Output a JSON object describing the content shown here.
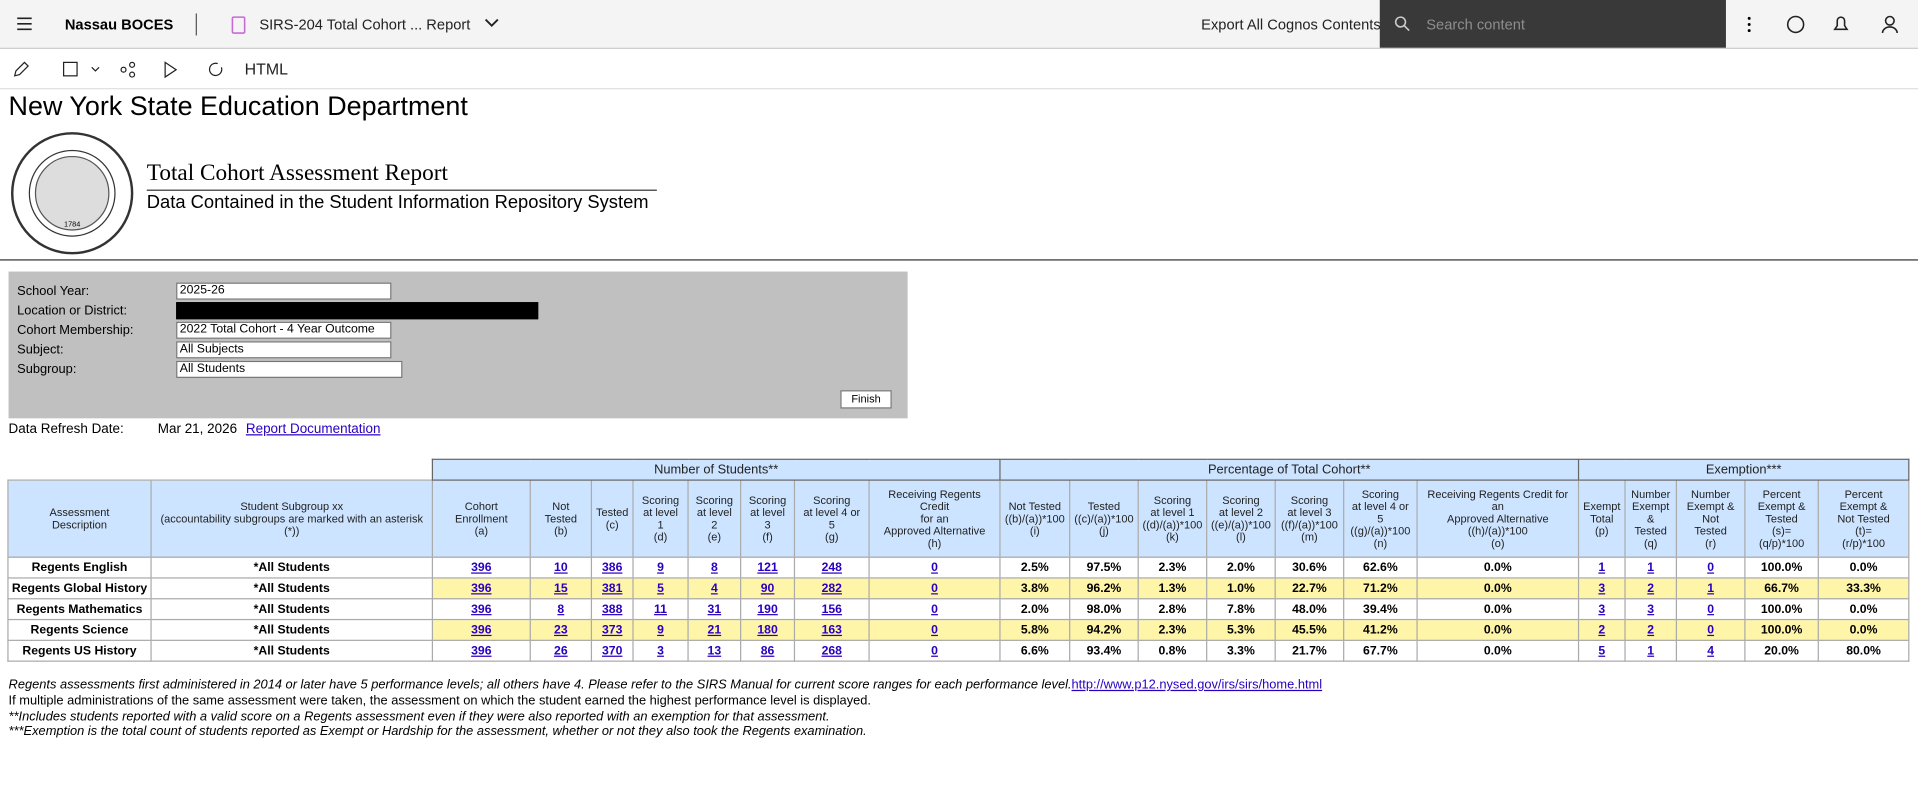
{
  "topbar": {
    "org": "Nassau BOCES",
    "report_tab": "SIRS-204 Total Cohort ... Report",
    "export": "Export All Cognos Contents",
    "search_placeholder": "Search content"
  },
  "toolbar": {
    "format": "HTML"
  },
  "report": {
    "heading": "New York State Education Department",
    "seal_year": "1784",
    "title": "Total Cohort Assessment Report",
    "subtitle": "Data Contained in the Student Information Repository System",
    "prompts": [
      {
        "label": "School Year:",
        "value": "2025-26"
      },
      {
        "label": "Location or District:"
      },
      {
        "label": "Cohort Membership:",
        "value": "2022 Total Cohort - 4 Year Outcome"
      },
      {
        "label": "Subject:",
        "value": "All Subjects"
      },
      {
        "label": "Subgroup:",
        "value": "All Students"
      }
    ],
    "finish": "Finish",
    "refresh_label": "Data Refresh Date:",
    "refresh_date": "Mar 21, 2026",
    "doc_link": "Report Documentation"
  },
  "table": {
    "groups": [
      "Number of Students**",
      "Percentage of Total Cohort**",
      "Exemption***"
    ],
    "headers": [
      "Assessment\nDescription",
      "Student Subgroup xx\n(accountability subgroups are marked with an asterisk\n(*))",
      "Cohort\nEnrollment\n(a)",
      "Not\nTested\n(b)",
      "Tested\n(c)",
      "Scoring\nat level\n1\n(d)",
      "Scoring\nat level\n2\n(e)",
      "Scoring\nat level\n3\n(f)",
      "Scoring\nat level 4 or\n5\n(g)",
      "Receiving Regents\nCredit\nfor an\nApproved Alternative\n(h)",
      "Not Tested\n((b)/(a))*100\n(i)",
      "Tested\n((c)/(a))*100\n(j)",
      "Scoring\nat level 1\n((d)/(a))*100\n(k)",
      "Scoring\nat level 2\n((e)/(a))*100\n(l)",
      "Scoring\nat level 3\n((f)/(a))*100\n(m)",
      "Scoring\nat level 4 or\n5\n((g)/(a))*100\n(n)",
      "Receiving Regents Credit for\nan\nApproved Alternative\n((h)/(a))*100\n(o)",
      "Exempt\nTotal\n(p)",
      "Number\nExempt\n&\nTested\n(q)",
      "Number\nExempt &\nNot\nTested\n(r)",
      "Percent\nExempt &\nTested\n(s)=\n(q/p)*100",
      "Percent\nExempt &\nNot Tested\n(t)=\n(r/p)*100"
    ],
    "rows": [
      [
        "Regents English",
        "*All Students",
        "396",
        "10",
        "386",
        "9",
        "8",
        "121",
        "248",
        "0",
        "2.5%",
        "97.5%",
        "2.3%",
        "2.0%",
        "30.6%",
        "62.6%",
        "0.0%",
        "1",
        "1",
        "0",
        "100.0%",
        "0.0%"
      ],
      [
        "Regents Global History",
        "*All Students",
        "396",
        "15",
        "381",
        "5",
        "4",
        "90",
        "282",
        "0",
        "3.8%",
        "96.2%",
        "1.3%",
        "1.0%",
        "22.7%",
        "71.2%",
        "0.0%",
        "3",
        "2",
        "1",
        "66.7%",
        "33.3%"
      ],
      [
        "Regents Mathematics",
        "*All Students",
        "396",
        "8",
        "388",
        "11",
        "31",
        "190",
        "156",
        "0",
        "2.0%",
        "98.0%",
        "2.8%",
        "7.8%",
        "48.0%",
        "39.4%",
        "0.0%",
        "3",
        "3",
        "0",
        "100.0%",
        "0.0%"
      ],
      [
        "Regents Science",
        "*All Students",
        "396",
        "23",
        "373",
        "9",
        "21",
        "180",
        "163",
        "0",
        "5.8%",
        "94.2%",
        "2.3%",
        "5.3%",
        "45.5%",
        "41.2%",
        "0.0%",
        "2",
        "2",
        "0",
        "100.0%",
        "0.0%"
      ],
      [
        "Regents US History",
        "*All Students",
        "396",
        "26",
        "370",
        "3",
        "13",
        "86",
        "268",
        "0",
        "6.6%",
        "93.4%",
        "0.8%",
        "3.3%",
        "21.7%",
        "67.7%",
        "0.0%",
        "5",
        "1",
        "4",
        "20.0%",
        "80.0%"
      ]
    ]
  },
  "footnotes": {
    "line1": "Regents assessments first administered in 2014 or later have 5 performance levels; all others have 4. Please refer to the SIRS Manual for current score ranges for each performance level.",
    "link": "http://www.p12.nysed.gov/irs/sirs/home.html",
    "line2": "If multiple administrations of the same assessment were taken, the assessment on which the student earned the highest performance level is displayed.",
    "line3": "**Includes students reported with a valid score on a Regents assessment even if they were also reported with an exemption for that assessment.",
    "line4": "***Exemption is the total count of students reported as Exempt or Hardship for the assessment, whether or not they also took the Regents examination."
  }
}
